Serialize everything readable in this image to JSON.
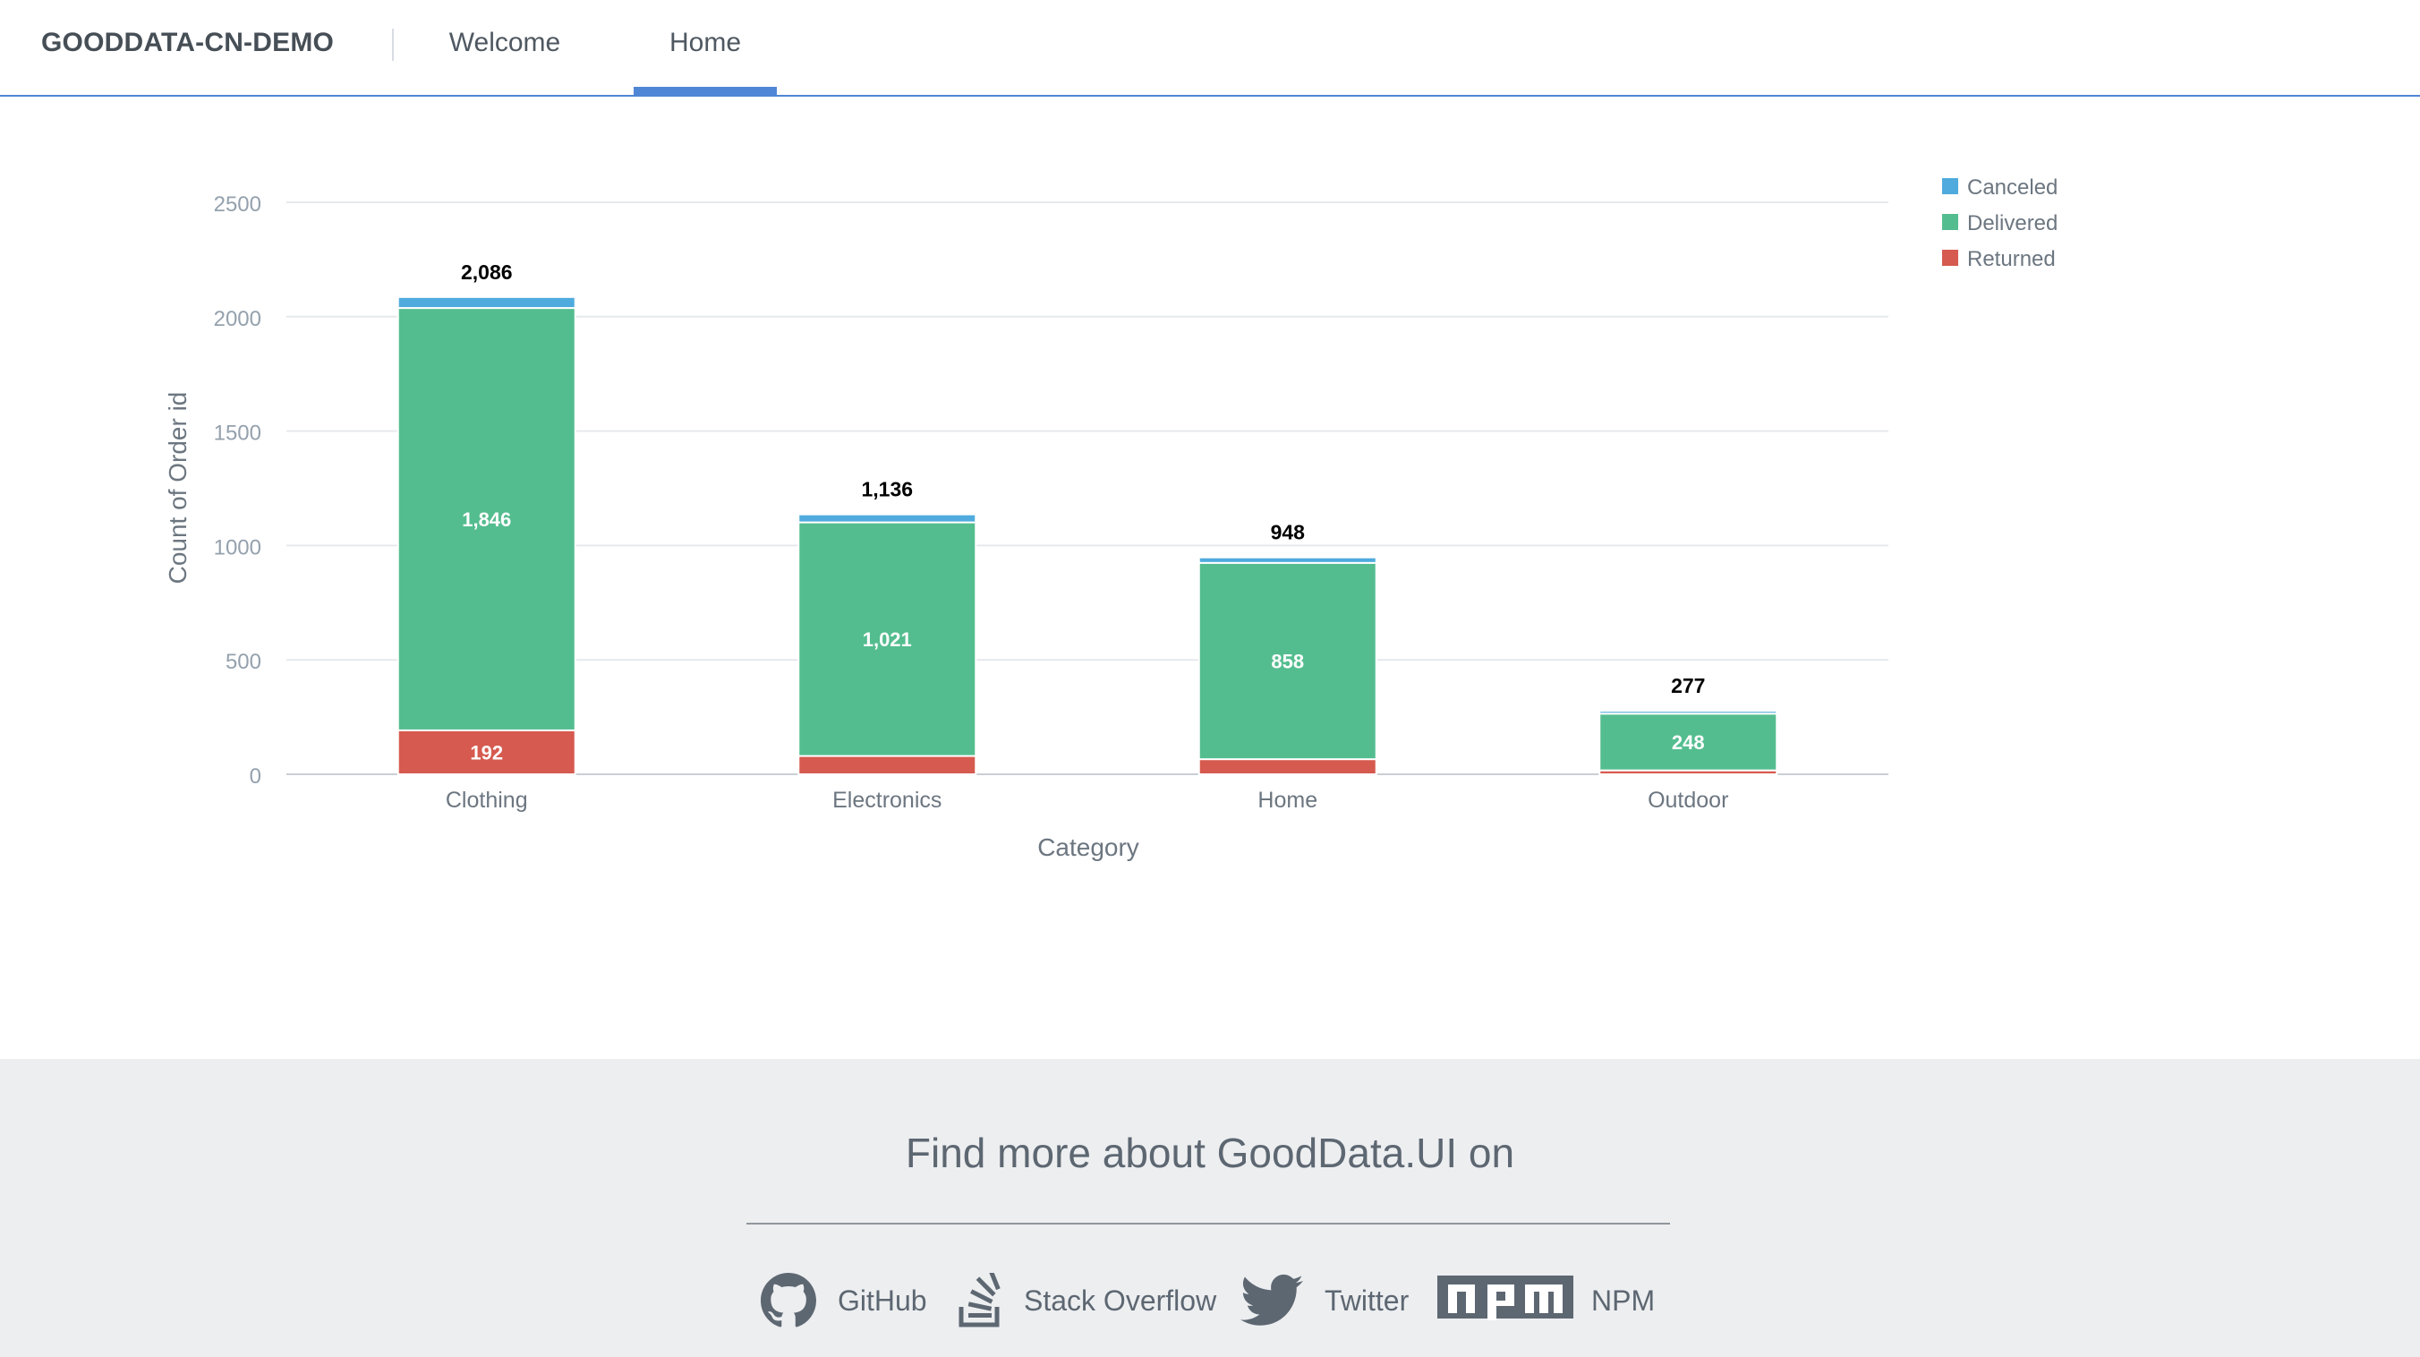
{
  "header": {
    "brand": "GOODDATA-CN-DEMO",
    "nav": [
      {
        "label": "Welcome",
        "active": false
      },
      {
        "label": "Home",
        "active": true
      }
    ]
  },
  "colors": {
    "accent": "#4f86d6",
    "canceled": "#4fabdd",
    "delivered": "#54bd8f",
    "returned": "#d65a4f"
  },
  "chart_data": {
    "type": "bar",
    "stacked": true,
    "categories": [
      "Clothing",
      "Electronics",
      "Home",
      "Outdoor"
    ],
    "series": [
      {
        "name": "Returned",
        "color": "#d65a4f",
        "values": [
          192,
          80,
          66,
          17
        ]
      },
      {
        "name": "Delivered",
        "color": "#54bd8f",
        "values": [
          1846,
          1021,
          858,
          248
        ]
      },
      {
        "name": "Canceled",
        "color": "#4fabdd",
        "values": [
          48,
          35,
          24,
          12
        ]
      }
    ],
    "segment_labels": {
      "Returned": [
        "192",
        "",
        "",
        ""
      ],
      "Delivered": [
        "1,846",
        "1,021",
        "858",
        "248"
      ],
      "Canceled": [
        "",
        "",
        "",
        ""
      ]
    },
    "totals": [
      "2,086",
      "1,136",
      "948",
      "277"
    ],
    "xlabel": "Category",
    "ylabel": "Count of Order id",
    "ylim": [
      0,
      2500
    ],
    "yticks": [
      "0",
      "500",
      "1000",
      "1500",
      "2000",
      "2500"
    ],
    "legend": {
      "position": "top-right",
      "order": [
        "Canceled",
        "Delivered",
        "Returned"
      ]
    },
    "grid": true
  },
  "footer": {
    "title": "Find more about GoodData.UI on",
    "links": [
      {
        "label": "GitHub",
        "icon": "github-icon"
      },
      {
        "label": "Stack Overflow",
        "icon": "stack-overflow-icon"
      },
      {
        "label": "Twitter",
        "icon": "twitter-icon"
      },
      {
        "label": "NPM",
        "icon": "npm-icon"
      }
    ]
  }
}
